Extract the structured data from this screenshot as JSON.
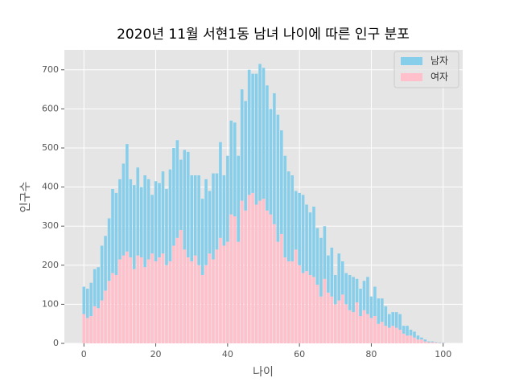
{
  "chart_data": {
    "type": "stacked-bar",
    "title": "2020년 11월 서현1동 남녀 나이에 따른 인구 분포",
    "x_label": "나이",
    "y_label": "인구수",
    "x": [
      0,
      1,
      2,
      3,
      4,
      5,
      6,
      7,
      8,
      9,
      10,
      11,
      12,
      13,
      14,
      15,
      16,
      17,
      18,
      19,
      20,
      21,
      22,
      23,
      24,
      25,
      26,
      27,
      28,
      29,
      30,
      31,
      32,
      33,
      34,
      35,
      36,
      37,
      38,
      39,
      40,
      41,
      42,
      43,
      44,
      45,
      46,
      47,
      48,
      49,
      50,
      51,
      52,
      53,
      54,
      55,
      56,
      57,
      58,
      59,
      60,
      61,
      62,
      63,
      64,
      65,
      66,
      67,
      68,
      69,
      70,
      71,
      72,
      73,
      74,
      75,
      76,
      77,
      78,
      79,
      80,
      81,
      82,
      83,
      84,
      85,
      86,
      87,
      88,
      89,
      90,
      91,
      92,
      93,
      94,
      95,
      96,
      97,
      98,
      99,
      100
    ],
    "series": [
      {
        "name": "남자",
        "color": "#87ceeb",
        "values": [
          70,
          75,
          85,
          95,
          105,
          140,
          140,
          160,
          215,
          210,
          205,
          235,
          275,
          200,
          215,
          225,
          180,
          235,
          205,
          150,
          205,
          190,
          210,
          195,
          235,
          250,
          250,
          180,
          255,
          270,
          220,
          205,
          230,
          195,
          220,
          160,
          220,
          195,
          245,
          180,
          220,
          240,
          240,
          220,
          285,
          280,
          320,
          305,
          335,
          350,
          335,
          320,
          270,
          335,
          325,
          265,
          260,
          230,
          220,
          150,
          185,
          200,
          170,
          160,
          180,
          145,
          150,
          135,
          95,
          125,
          75,
          120,
          85,
          80,
          90,
          90,
          60,
          70,
          75,
          95,
          55,
          75,
          65,
          60,
          50,
          35,
          35,
          40,
          40,
          20,
          25,
          15,
          15,
          10,
          5,
          5,
          2,
          2,
          1,
          1,
          1
        ]
      },
      {
        "name": "여자",
        "color": "#ffc0cb",
        "values": [
          75,
          65,
          70,
          95,
          90,
          110,
          135,
          160,
          180,
          175,
          215,
          225,
          235,
          220,
          190,
          225,
          220,
          195,
          215,
          230,
          210,
          220,
          230,
          200,
          210,
          250,
          270,
          290,
          240,
          220,
          210,
          225,
          200,
          175,
          200,
          230,
          215,
          240,
          270,
          250,
          260,
          330,
          325,
          260,
          365,
          340,
          380,
          385,
          355,
          365,
          370,
          340,
          330,
          305,
          260,
          280,
          220,
          210,
          210,
          240,
          200,
          180,
          185,
          175,
          170,
          150,
          120,
          165,
          130,
          120,
          100,
          110,
          125,
          100,
          85,
          80,
          105,
          70,
          85,
          75,
          65,
          70,
          50,
          55,
          45,
          40,
          45,
          40,
          35,
          25,
          20,
          20,
          15,
          10,
          10,
          5,
          3,
          3,
          2,
          1,
          1
        ]
      }
    ],
    "xlim": [
      -5.44,
      105.44
    ],
    "ylim": [
      0,
      751
    ],
    "xticks": [
      0,
      20,
      40,
      60,
      80,
      100
    ],
    "yticks": [
      0,
      100,
      200,
      300,
      400,
      500,
      600,
      700
    ],
    "grid": true,
    "legend": "upper right",
    "bar_width": 0.8
  }
}
